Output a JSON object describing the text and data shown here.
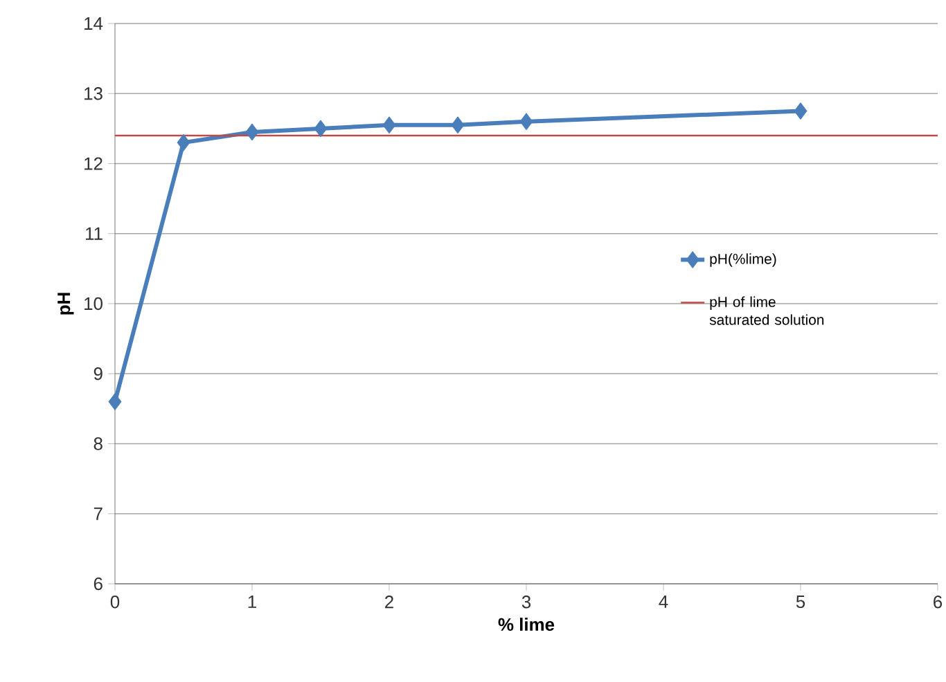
{
  "chart_data": {
    "type": "line",
    "xlabel": "% lime",
    "ylabel": "pH",
    "x": [
      0,
      0.5,
      1,
      1.5,
      2,
      2.5,
      3,
      5
    ],
    "series": [
      {
        "name": "pH(%lime)",
        "color": "#4a7ebb",
        "values": [
          8.6,
          12.3,
          12.45,
          12.5,
          12.55,
          12.55,
          12.6,
          12.75
        ]
      }
    ],
    "xlim": [
      0,
      6
    ],
    "xticks": [
      0,
      1,
      2,
      3,
      4,
      5,
      6
    ],
    "ylim": [
      6,
      14
    ],
    "yticks": [
      6,
      7,
      8,
      9,
      10,
      11,
      12,
      13,
      14
    ],
    "ref_lines": [
      {
        "axis": "y",
        "value": 12.4,
        "label": "pH of lime saturated solution",
        "color": "#be4b48"
      }
    ],
    "grid": "y",
    "legend": "right",
    "marker": "diamond",
    "line_style": "solid"
  }
}
